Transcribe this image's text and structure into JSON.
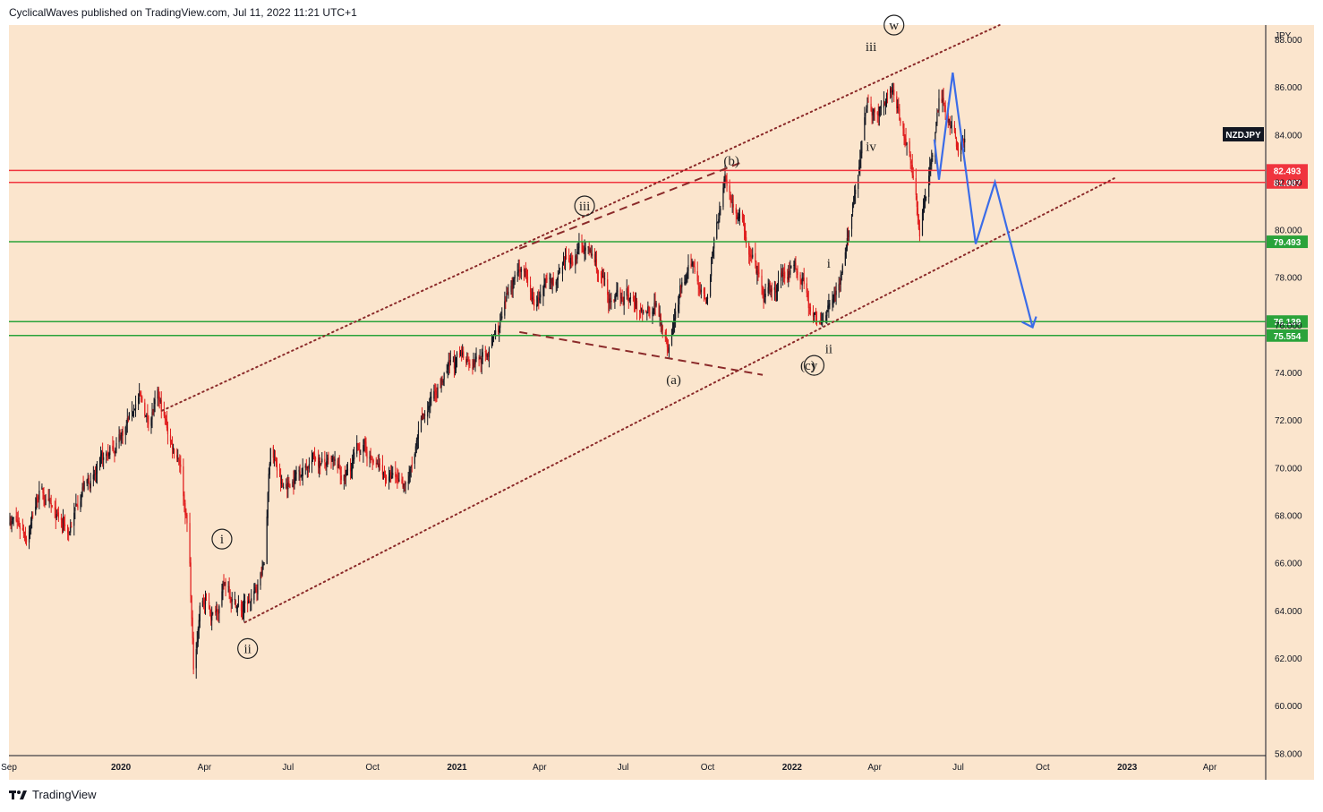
{
  "header": {
    "publish_info": "CyclicalWaves published on TradingView.com, Jul 11, 2022 11:21 UTC+1"
  },
  "footer": {
    "brand": "TradingView"
  },
  "chart_data": {
    "type": "candlestick",
    "symbol": "NZDJPY",
    "currency": "JPY",
    "background_color": "#fbe5cd",
    "x_ticks": [
      "Sep",
      "2020",
      "Apr",
      "Jul",
      "Oct",
      "2021",
      "Apr",
      "Jul",
      "Oct",
      "2022",
      "Apr",
      "Jul",
      "Oct",
      "2023",
      "Apr"
    ],
    "x_tick_dates": [
      "2019-09-01",
      "2020-01-01",
      "2020-04-01",
      "2020-07-01",
      "2020-10-01",
      "2021-01-01",
      "2021-04-01",
      "2021-07-01",
      "2021-10-01",
      "2022-01-01",
      "2022-04-01",
      "2022-07-01",
      "2022-10-01",
      "2023-01-01",
      "2023-04-01"
    ],
    "y_ticks": [
      "58.000",
      "60.000",
      "62.000",
      "64.000",
      "66.000",
      "68.000",
      "70.000",
      "72.000",
      "74.000",
      "76.000",
      "78.000",
      "80.000",
      "82.000",
      "84.000",
      "86.000",
      "88.000"
    ],
    "y_range": [
      57.9,
      88.6
    ],
    "bull_color": "#131722",
    "bear_color": "#e01e1e",
    "price_path": [
      [
        "2019-09-01",
        68.0
      ],
      [
        "2019-09-20",
        67.3
      ],
      [
        "2019-10-05",
        69.2
      ],
      [
        "2019-10-20",
        67.8
      ],
      [
        "2019-11-05",
        67.3
      ],
      [
        "2019-11-20",
        69.3
      ],
      [
        "2019-12-05",
        69.6
      ],
      [
        "2019-12-20",
        70.6
      ],
      [
        "2020-01-05",
        71.7
      ],
      [
        "2020-01-20",
        73.0
      ],
      [
        "2020-01-30",
        72.0
      ],
      [
        "2020-02-10",
        72.8
      ],
      [
        "2020-02-25",
        71.0
      ],
      [
        "2020-03-05",
        70.5
      ],
      [
        "2020-03-15",
        67.0
      ],
      [
        "2020-03-20",
        61.5
      ],
      [
        "2020-03-28",
        64.5
      ],
      [
        "2020-04-10",
        63.8
      ],
      [
        "2020-04-25",
        65.2
      ],
      [
        "2020-05-10",
        64.0
      ],
      [
        "2020-05-25",
        64.5
      ],
      [
        "2020-06-05",
        66.0
      ],
      [
        "2020-06-12",
        71.0
      ],
      [
        "2020-06-25",
        69.0
      ],
      [
        "2020-07-10",
        69.8
      ],
      [
        "2020-07-30",
        70.5
      ],
      [
        "2020-08-15",
        70.0
      ],
      [
        "2020-09-01",
        69.5
      ],
      [
        "2020-09-20",
        71.0
      ],
      [
        "2020-10-05",
        70.0
      ],
      [
        "2020-10-25",
        69.4
      ],
      [
        "2020-11-10",
        69.6
      ],
      [
        "2020-11-25",
        71.8
      ],
      [
        "2020-12-10",
        73.5
      ],
      [
        "2020-12-28",
        74.2
      ],
      [
        "2021-01-15",
        74.7
      ],
      [
        "2021-02-01",
        74.6
      ],
      [
        "2021-02-20",
        76.2
      ],
      [
        "2021-03-01",
        77.8
      ],
      [
        "2021-03-10",
        78.6
      ],
      [
        "2021-03-25",
        76.8
      ],
      [
        "2021-04-10",
        77.6
      ],
      [
        "2021-04-25",
        78.0
      ],
      [
        "2021-05-10",
        79.0
      ],
      [
        "2021-05-20",
        79.4
      ],
      [
        "2021-06-05",
        78.2
      ],
      [
        "2021-06-20",
        76.6
      ],
      [
        "2021-07-05",
        77.3
      ],
      [
        "2021-07-20",
        76.4
      ],
      [
        "2021-08-05",
        77.1
      ],
      [
        "2021-08-20",
        75.3
      ],
      [
        "2021-09-01",
        77.3
      ],
      [
        "2021-09-15",
        78.4
      ],
      [
        "2021-10-01",
        77.3
      ],
      [
        "2021-10-10",
        80.0
      ],
      [
        "2021-10-20",
        82.0
      ],
      [
        "2021-11-01",
        80.8
      ],
      [
        "2021-11-15",
        79.3
      ],
      [
        "2021-12-01",
        77.0
      ],
      [
        "2021-12-15",
        77.4
      ],
      [
        "2022-01-01",
        78.6
      ],
      [
        "2022-01-15",
        77.9
      ],
      [
        "2022-01-28",
        75.8
      ],
      [
        "2022-02-10",
        77.0
      ],
      [
        "2022-02-20",
        77.8
      ],
      [
        "2022-03-05",
        80.0
      ],
      [
        "2022-03-15",
        82.8
      ],
      [
        "2022-03-25",
        85.6
      ],
      [
        "2022-04-05",
        85.0
      ],
      [
        "2022-04-20",
        86.2
      ],
      [
        "2022-05-01",
        84.2
      ],
      [
        "2022-05-10",
        83.3
      ],
      [
        "2022-05-20",
        80.0
      ],
      [
        "2022-05-30",
        82.2
      ],
      [
        "2022-06-10",
        85.5
      ],
      [
        "2022-06-20",
        84.5
      ],
      [
        "2022-07-01",
        83.4
      ],
      [
        "2022-07-08",
        84.2
      ]
    ],
    "horizontal_levels": [
      {
        "value": 82.493,
        "label": "82.493",
        "color": "#f0343e"
      },
      {
        "value": 81.987,
        "label": "81.987",
        "color": "#f0343e"
      },
      {
        "value": 79.493,
        "label": "79.493",
        "color": "#2aa33a"
      },
      {
        "value": 76.139,
        "label": "76.139",
        "color": "#2aa33a"
      },
      {
        "value": 75.554,
        "label": "75.554",
        "color": "#2aa33a"
      }
    ],
    "projection_path": [
      [
        "2022-06-05",
        83.8
      ],
      [
        "2022-06-10",
        82.1
      ],
      [
        "2022-06-25",
        86.6
      ],
      [
        "2022-07-20",
        79.4
      ],
      [
        "2022-08-10",
        82.0
      ],
      [
        "2022-09-20",
        75.9
      ]
    ],
    "projection_color": "#3b6ce8",
    "channel_upper": [
      [
        "2020-02-15",
        72.4
      ],
      [
        "2022-08-15",
        88.6
      ]
    ],
    "channel_lower": [
      [
        "2020-05-15",
        63.5
      ],
      [
        "2022-12-20",
        82.2
      ]
    ],
    "triangle_upper": [
      [
        "2021-03-10",
        79.2
      ],
      [
        "2021-11-05",
        82.8
      ]
    ],
    "triangle_lower": [
      [
        "2021-03-10",
        75.7
      ],
      [
        "2021-11-30",
        73.9
      ]
    ],
    "wave_labels": [
      {
        "text": "i",
        "date": "2020-04-20",
        "value": 67.0,
        "circled": true
      },
      {
        "text": "ii",
        "date": "2020-05-18",
        "value": 62.4,
        "circled": true
      },
      {
        "text": "iii",
        "date": "2021-05-20",
        "value": 81.0,
        "circled": true
      },
      {
        "text": "(a)",
        "date": "2021-08-25",
        "value": 73.7,
        "circled": false
      },
      {
        "text": "(b)",
        "date": "2021-10-27",
        "value": 82.9,
        "circled": false
      },
      {
        "text": "(c)",
        "date": "2022-01-18",
        "value": 74.3,
        "circled": false
      },
      {
        "text": "y",
        "date": "2022-01-25",
        "value": 74.3,
        "circled": true
      },
      {
        "text": "i",
        "date": "2022-02-10",
        "value": 78.6,
        "circled": false
      },
      {
        "text": "ii",
        "date": "2022-02-10",
        "value": 75.0,
        "circled": false
      },
      {
        "text": "iii",
        "date": "2022-03-28",
        "value": 87.7,
        "circled": false
      },
      {
        "text": "iv",
        "date": "2022-03-28",
        "value": 83.5,
        "circled": false
      },
      {
        "text": "w",
        "date": "2022-04-22",
        "value": 88.6,
        "circled": true
      }
    ]
  }
}
